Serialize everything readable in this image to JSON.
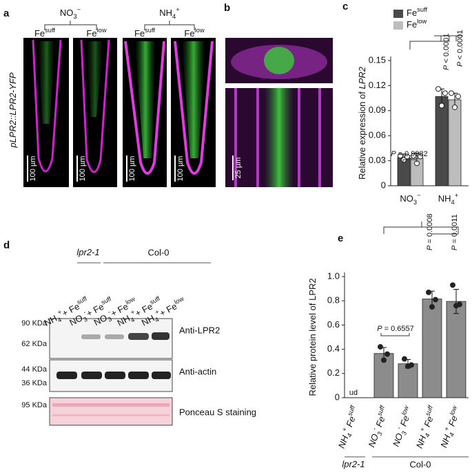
{
  "figure": {
    "panel_labels": [
      "a",
      "b",
      "c",
      "d",
      "e"
    ],
    "a": {
      "groups": [
        [
          "NO",
          {
            "sub": "3"
          },
          {
            "sup": "−"
          }
        ],
        [
          "NH",
          {
            "sub": "4"
          },
          {
            "sup": "+"
          }
        ]
      ],
      "conditions": [
        [
          "Fe",
          {
            "sup": "suff"
          }
        ],
        [
          "Fe",
          {
            "sup": "low"
          }
        ],
        [
          "Fe",
          {
            "sup": "suff"
          }
        ],
        [
          "Fe",
          {
            "sup": "low"
          }
        ]
      ],
      "construct": [
        {
          "i": "pLPR2::LPR2-YFP"
        }
      ],
      "scale_bar": "100 µm"
    },
    "b": {
      "scale_bar": "25 µm"
    },
    "d": {
      "genotypes": [
        [
          {
            "i": "lpr2-1"
          }
        ],
        "Col-0"
      ],
      "lanes": [
        [
          "NH",
          {
            "sub": "4"
          },
          {
            "sup": "+"
          },
          "+ Fe",
          {
            "sup": "suff"
          }
        ],
        [
          "NO",
          {
            "sub": "3"
          },
          {
            "sup": "-"
          },
          "+ Fe",
          {
            "sup": "suff"
          }
        ],
        [
          "NO",
          {
            "sub": "3"
          },
          {
            "sup": "-"
          },
          "+ Fe",
          {
            "sup": "low"
          }
        ],
        [
          "NH",
          {
            "sub": "4"
          },
          {
            "sup": "+"
          },
          "+ Fe",
          {
            "sup": "suff"
          }
        ],
        [
          "NH",
          {
            "sub": "4"
          },
          {
            "sup": "+"
          },
          "+ Fe",
          {
            "sup": "low"
          }
        ]
      ],
      "markers": [
        "90 KDa",
        "62 KDa",
        "44 KDa",
        "36 KDa",
        "95 KDa"
      ],
      "blots": [
        "Anti-LPR2",
        "Anti-actin",
        "Ponceau S staining"
      ]
    }
  },
  "chart_data": [
    {
      "type": "bar",
      "ylabel": [
        "Relative expression of ",
        {
          "i": "LPR2"
        }
      ],
      "categories": [
        [
          "NO",
          {
            "sub": "3"
          },
          {
            "sup": "−"
          }
        ],
        [
          "NH",
          {
            "sub": "4"
          },
          {
            "sup": "+"
          }
        ]
      ],
      "series": [
        {
          "name": [
            "Fe",
            {
              "sup": "suff"
            }
          ],
          "color": "#4a4a4a",
          "values": [
            0.034,
            0.107
          ],
          "errors": [
            0.004,
            0.009
          ],
          "points": [
            [
              0.036,
              0.031,
              0.035
            ],
            [
              0.116,
              0.096,
              0.111
            ]
          ]
        },
        {
          "name": [
            "Fe",
            {
              "sup": "low"
            }
          ],
          "color": "#bdbdbd",
          "values": [
            0.033,
            0.103
          ],
          "errors": [
            0.006,
            0.008
          ],
          "points": [
            [
              0.036,
              0.027,
              0.035
            ],
            [
              0.111,
              0.094,
              0.107
            ]
          ]
        }
      ],
      "ylim": [
        0,
        0.15
      ],
      "yticks": [
        0,
        0.03,
        0.06,
        0.09,
        0.12,
        0.15
      ],
      "annotations": [
        [
          {
            "i": "P"
          },
          " = 0.9982"
        ],
        [
          {
            "i": "P"
          },
          " < 0.0001"
        ],
        [
          {
            "i": "P"
          },
          " < 0.0001"
        ]
      ]
    },
    {
      "type": "bar",
      "ylabel": [
        "Relative protein level of LPR2"
      ],
      "categories": [
        [
          "NH",
          {
            "sub": "4"
          },
          {
            "sup": "+"
          },
          " Fe",
          {
            "sup": "suff"
          }
        ],
        [
          "NO",
          {
            "sub": "3"
          },
          {
            "sup": "-"
          },
          " Fe",
          {
            "sup": "suff"
          }
        ],
        [
          "NO",
          {
            "sub": "3"
          },
          {
            "sup": "-"
          },
          " Fe",
          {
            "sup": "low"
          }
        ],
        [
          "NH",
          {
            "sub": "4"
          },
          {
            "sup": "+"
          },
          " Fe",
          {
            "sup": "suff"
          }
        ],
        [
          "NH",
          {
            "sub": "4"
          },
          {
            "sup": "+"
          },
          " Fe",
          {
            "sup": "low"
          }
        ]
      ],
      "series": [
        {
          "color": "#8c8c8c",
          "values": [
            null,
            0.365,
            0.28,
            0.815,
            0.795
          ],
          "errors": [
            null,
            0.05,
            0.035,
            0.065,
            0.1
          ],
          "points": [
            null,
            [
              0.42,
              0.31,
              0.36
            ],
            [
              0.32,
              0.26,
              0.27
            ],
            [
              0.87,
              0.75,
              0.81
            ],
            [
              0.93,
              0.76,
              0.77
            ]
          ]
        }
      ],
      "ylim": [
        0,
        1
      ],
      "yticks": [
        0,
        0.2,
        0.4,
        0.6,
        0.8,
        {
          "value": 1,
          "label": "1.0"
        }
      ],
      "annotations": [
        "ud",
        [
          {
            "i": "P"
          },
          " = 0.6557"
        ],
        [
          {
            "i": "P"
          },
          " = 0.0008"
        ],
        [
          {
            "i": "P"
          },
          " = 0.0011"
        ]
      ],
      "groups": [
        [
          {
            "i": "lpr2-1"
          }
        ],
        "Col-0"
      ]
    }
  ]
}
